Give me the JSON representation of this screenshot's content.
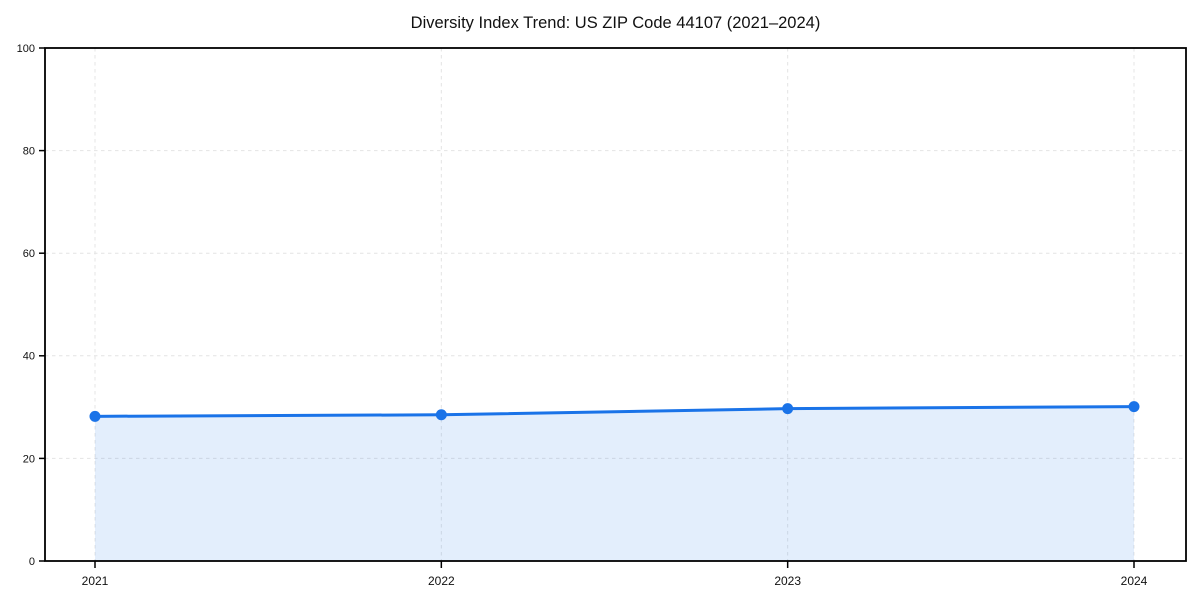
{
  "chart_data": {
    "type": "line",
    "title": "Diversity Index Trend: US ZIP Code 44107 (2021–2024)",
    "x": [
      2021,
      2022,
      2023,
      2024
    ],
    "categories": [
      "2021",
      "2022",
      "2023",
      "2024"
    ],
    "series": [
      {
        "name": "Diversity Index",
        "values": [
          28.2,
          28.5,
          29.7,
          30.1
        ]
      }
    ],
    "xlabel": "",
    "ylabel": "",
    "ylim": [
      0,
      100
    ],
    "yticks": [
      0,
      20,
      40,
      60,
      80,
      100
    ],
    "grid": true,
    "grid_style": "dashed",
    "legend_position": "none",
    "area_fill": true,
    "colors": {
      "line": "#1a73e8",
      "marker": "#1a73e8",
      "area": "rgba(26,115,232,0.12)",
      "grid": "#e4e4e4",
      "spine": "#000000",
      "background": "#ffffff",
      "text": "#111111"
    }
  }
}
